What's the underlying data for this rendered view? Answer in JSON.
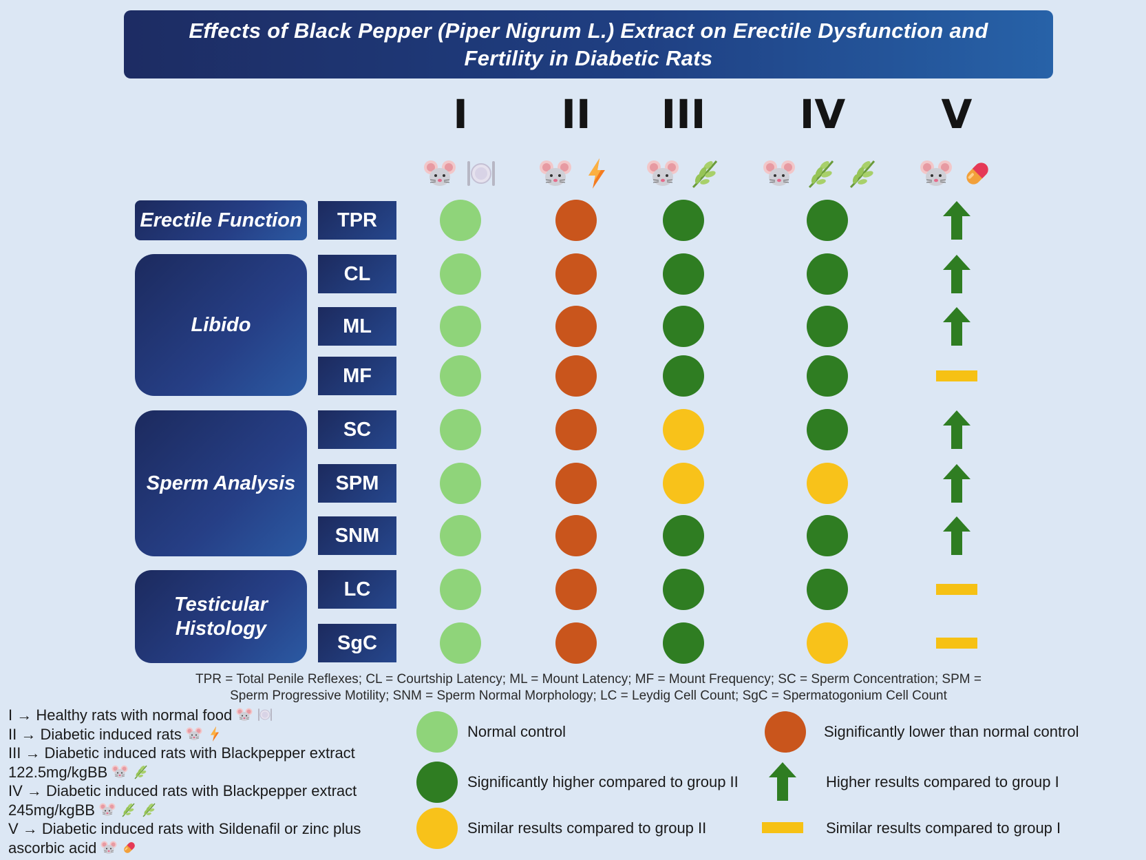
{
  "title": {
    "line1": "Effects of Black Pepper (Piper Nigrum L.) Extract on Erectile Dysfunction and",
    "line2": "Fertility in Diabetic Rats"
  },
  "groups": [
    {
      "numeral": "I",
      "icons": [
        "rat-icon",
        "plate-icon"
      ]
    },
    {
      "numeral": "II",
      "icons": [
        "rat-icon",
        "bolt-icon"
      ]
    },
    {
      "numeral": "III",
      "icons": [
        "rat-icon",
        "leaf-icon"
      ]
    },
    {
      "numeral": "IV",
      "icons": [
        "rat-icon",
        "leaf-icon",
        "leaf-icon"
      ]
    },
    {
      "numeral": "V",
      "icons": [
        "rat-icon",
        "pill-icon"
      ]
    }
  ],
  "categories": [
    {
      "label": "Erectile Function"
    },
    {
      "label": "Libido"
    },
    {
      "label": "Sperm Analysis"
    },
    {
      "label": "Testicular Histology"
    }
  ],
  "metrics": [
    {
      "label": "TPR",
      "results": [
        "normal",
        "lower",
        "higher_vs_II",
        "higher_vs_II",
        "higher_vs_I"
      ]
    },
    {
      "label": "CL",
      "results": [
        "normal",
        "lower",
        "higher_vs_II",
        "higher_vs_II",
        "higher_vs_I"
      ]
    },
    {
      "label": "ML",
      "results": [
        "normal",
        "lower",
        "higher_vs_II",
        "higher_vs_II",
        "higher_vs_I"
      ]
    },
    {
      "label": "MF",
      "results": [
        "normal",
        "lower",
        "higher_vs_II",
        "higher_vs_II",
        "similar_vs_I"
      ]
    },
    {
      "label": "SC",
      "results": [
        "normal",
        "lower",
        "similar_vs_II",
        "higher_vs_II",
        "higher_vs_I"
      ]
    },
    {
      "label": "SPM",
      "results": [
        "normal",
        "lower",
        "similar_vs_II",
        "similar_vs_II",
        "higher_vs_I"
      ]
    },
    {
      "label": "SNM",
      "results": [
        "normal",
        "lower",
        "higher_vs_II",
        "higher_vs_II",
        "higher_vs_I"
      ]
    },
    {
      "label": "LC",
      "results": [
        "normal",
        "lower",
        "higher_vs_II",
        "higher_vs_II",
        "similar_vs_I"
      ]
    },
    {
      "label": "SgC",
      "results": [
        "normal",
        "lower",
        "higher_vs_II",
        "similar_vs_II",
        "similar_vs_I"
      ]
    }
  ],
  "abbreviations": {
    "line1": "TPR = Total Penile Reflexes; CL = Courtship Latency; ML = Mount Latency; MF = Mount Frequency; SC = Sperm Concentration; SPM =",
    "line2": "Sperm Progressive Motility; SNM = Sperm Normal Morphology; LC = Leydig Cell Count; SgC = Spermatogonium Cell Count"
  },
  "group_descriptions": [
    "I → Healthy rats with normal food",
    "II → Diabetic induced rats",
    "III → Diabetic induced rats with Blackpepper extract",
    "122.5mg/kgBB",
    "IV → Diabetic induced rats with Blackpepper extract",
    "245mg/kgBB",
    "V → Diabetic induced rats with Sildenafil or zinc plus",
    "ascorbic acid"
  ],
  "legend": {
    "normal": "Normal control",
    "lower": "Significantly lower than normal control",
    "higher_vs_II": "Significantly higher compared to group II",
    "higher_vs_I": "Higher results compared to group I",
    "similar_vs_II": "Similar results compared to group II",
    "similar_vs_I": "Similar results compared to group I"
  },
  "colors": {
    "normal": "#8fd47a",
    "lower": "#c9551c",
    "higher_vs_II": "#2f7d22",
    "similar_vs_II": "#f8c21a",
    "arrow": "#2f7d22",
    "dash": "#f6c114",
    "banner": "#1f3f82"
  }
}
